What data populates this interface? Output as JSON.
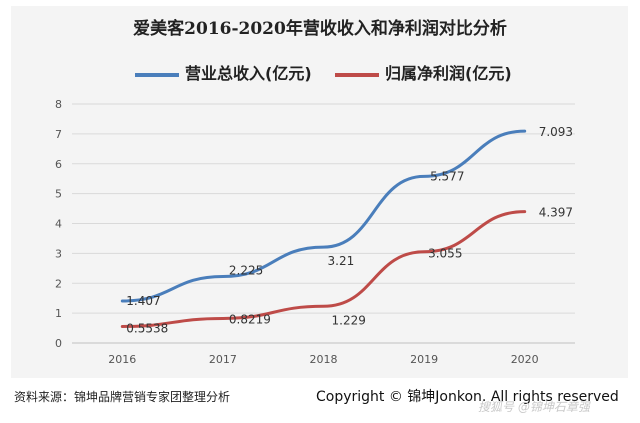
{
  "chart_data": {
    "type": "line",
    "title": "爱美客2016-2020年营收收入和净利润对比分析",
    "categories": [
      "2016",
      "2017",
      "2018",
      "2019",
      "2020"
    ],
    "ylim": [
      0,
      8
    ],
    "yticks": [
      "0",
      "1",
      "2",
      "3",
      "4",
      "5",
      "6",
      "7",
      "8"
    ],
    "grid": "horizontal",
    "legend_position": "top",
    "series": [
      {
        "name": "营业总收入(亿元)",
        "color": "#4a7ebb",
        "values": [
          1.407,
          2.225,
          3.21,
          5.577,
          7.093
        ],
        "labels": [
          "1.407",
          "2.225",
          "3.21",
          "5.577",
          "7.093"
        ]
      },
      {
        "name": "归属净利润(亿元)",
        "color": "#be4b48",
        "values": [
          0.5538,
          0.8219,
          1.229,
          3.055,
          4.397
        ],
        "labels": [
          "0.5538",
          "0.8219",
          "1.229",
          "3.055",
          "4.397"
        ]
      }
    ]
  },
  "footer": {
    "source": "资料来源：锦坤品牌营销专家团整理分析",
    "copyright": "Copyright © 锦坤Jonkon. All rights reserved",
    "watermark": "搜狐号 @锦坤石章强"
  }
}
